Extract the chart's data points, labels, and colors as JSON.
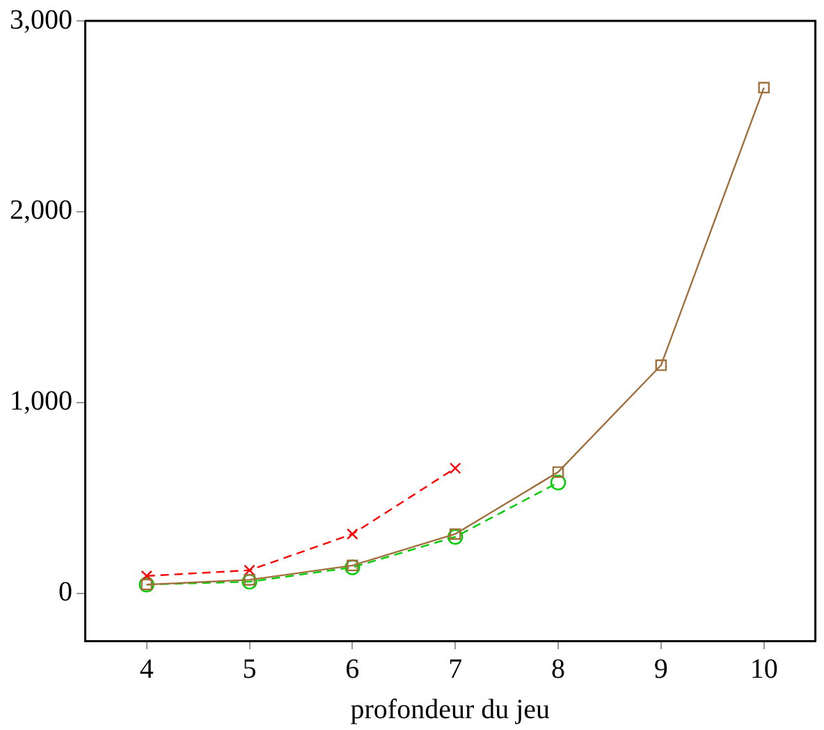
{
  "chart_data": {
    "type": "line",
    "xlabel": "profondeur du jeu",
    "series": [
      {
        "color": "#a0703c",
        "marker": "square",
        "line_style": "solid",
        "x": [
          4,
          5,
          6,
          7,
          8,
          9,
          10
        ],
        "values": [
          45,
          70,
          145,
          310,
          635,
          1195,
          2650
        ]
      },
      {
        "color": "#ff0000",
        "marker": "cross",
        "line_style": "dashed",
        "x": [
          4,
          5,
          6,
          7
        ],
        "values": [
          90,
          120,
          310,
          655
        ]
      },
      {
        "color": "#00cc00",
        "marker": "circle",
        "line_style": "dashed",
        "x": [
          4,
          5,
          6,
          7,
          8
        ],
        "values": [
          45,
          60,
          135,
          295,
          580
        ]
      }
    ],
    "xlim": [
      3.4,
      10.5
    ],
    "xticks": [
      4,
      5,
      6,
      7,
      8,
      9,
      10
    ],
    "ylim": [
      -250,
      3000
    ],
    "yticks": [
      {
        "value": 0,
        "label": "0"
      },
      {
        "value": 1000,
        "label": "1,000"
      },
      {
        "value": 2000,
        "label": "2,000"
      },
      {
        "value": 3000,
        "label": "3,000"
      }
    ],
    "grid": false,
    "legend": false
  }
}
